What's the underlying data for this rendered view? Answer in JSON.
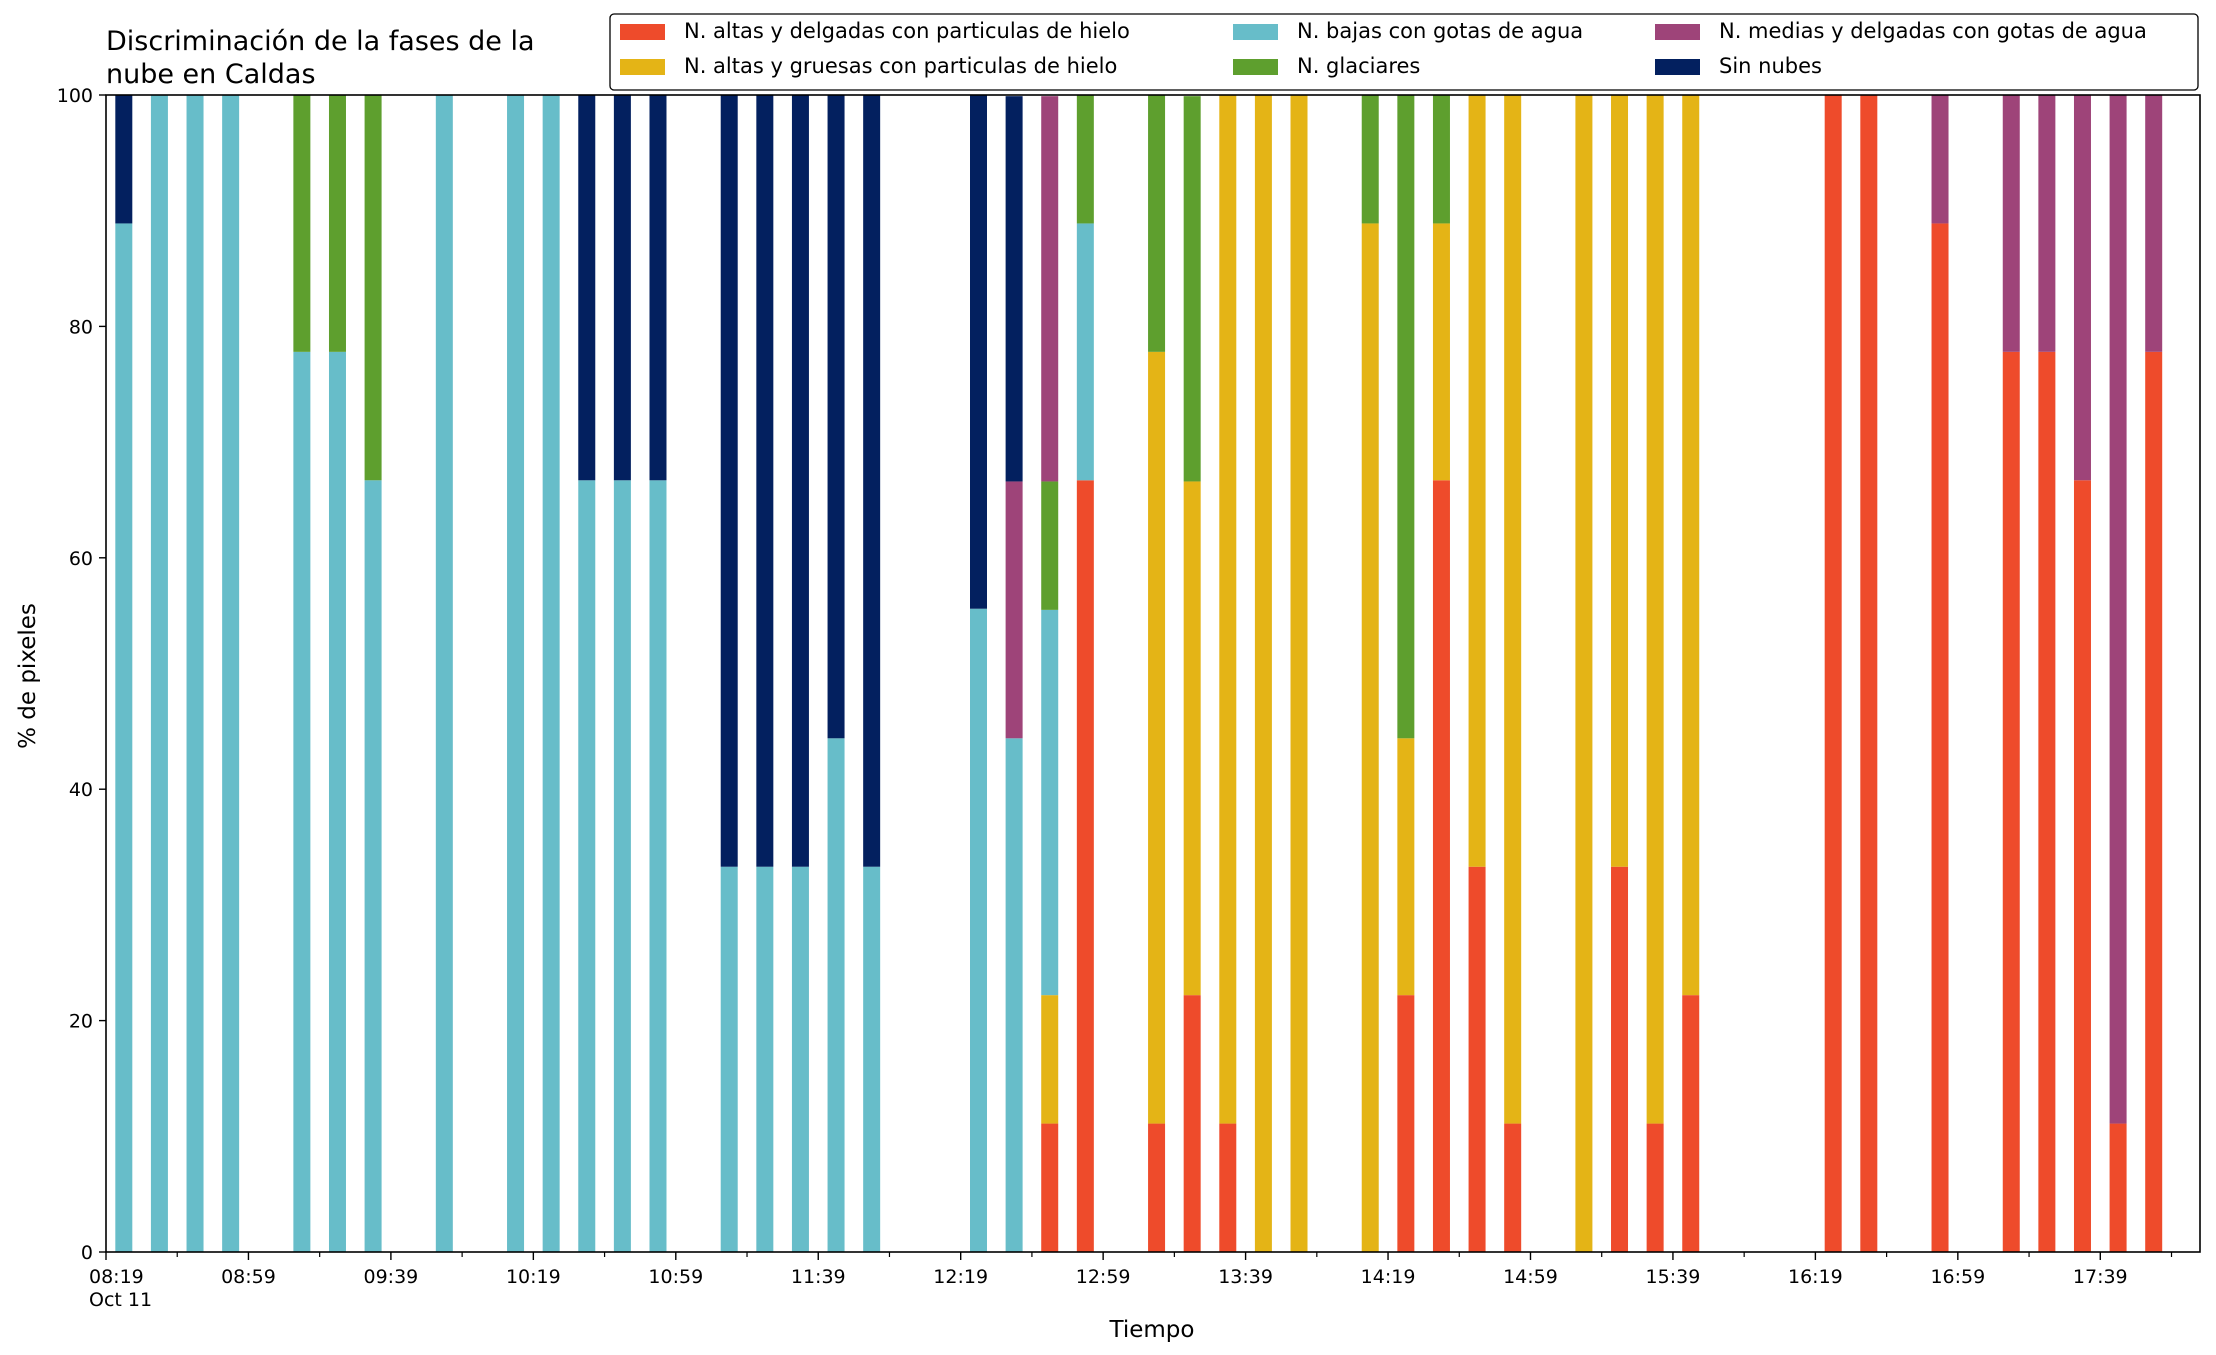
{
  "chart_data": {
    "type": "bar",
    "stacked": true,
    "title": [
      "Discriminación de la fases de la",
      "nube en Caldas"
    ],
    "xlabel": "Tiempo",
    "ylabel": "% de pixeles",
    "ylim": [
      0,
      100
    ],
    "yticks": [
      0,
      20,
      40,
      60,
      80,
      100
    ],
    "x_axis_start_label": "08:19",
    "x_axis_date_label": "Oct 11",
    "x_start_minutes": 499,
    "x_end_minutes": 1087,
    "xtick_labels": [
      "08:19",
      "08:59",
      "09:39",
      "10:19",
      "10:59",
      "11:39",
      "12:19",
      "12:59",
      "13:39",
      "14:19",
      "14:59",
      "15:39",
      "16:19",
      "16:59",
      "17:39"
    ],
    "legend_position": "top-right",
    "legend_columns": 3,
    "grid": false,
    "series": [
      {
        "name": "N. altas y delgadas con particulas de hielo",
        "color": "#ee4b2b"
      },
      {
        "name": "N. altas y gruesas con particulas de hielo",
        "color": "#e4b416"
      },
      {
        "name": "N. bajas con gotas de agua",
        "color": "#67bdc9"
      },
      {
        "name": "N. glaciares",
        "color": "#5e9f2e"
      },
      {
        "name": "N. medias y delgadas con gotas de agua",
        "color": "#9e4479"
      },
      {
        "name": "Sin nubes",
        "color": "#03205f"
      }
    ],
    "stack_order": [
      "N. altas y delgadas con particulas de hielo",
      "N. altas y gruesas con particulas de hielo",
      "N. bajas con gotas de agua",
      "N. glaciares",
      "N. medias y delgadas con gotas de agua",
      "Sin nubes"
    ],
    "bars": [
      {
        "time": "08:24",
        "values": [
          0,
          0,
          88.9,
          0,
          0,
          11.1
        ]
      },
      {
        "time": "08:34",
        "values": [
          0,
          0,
          100,
          0,
          0,
          0
        ]
      },
      {
        "time": "08:44",
        "values": [
          0,
          0,
          100,
          0,
          0,
          0
        ]
      },
      {
        "time": "08:54",
        "values": [
          0,
          0,
          100,
          0,
          0,
          0
        ]
      },
      {
        "time": "09:14",
        "values": [
          0,
          0,
          77.8,
          22.2,
          0,
          0
        ]
      },
      {
        "time": "09:24",
        "values": [
          0,
          0,
          77.8,
          22.2,
          0,
          0
        ]
      },
      {
        "time": "09:34",
        "values": [
          0,
          0,
          66.7,
          33.3,
          0,
          0
        ]
      },
      {
        "time": "09:54",
        "values": [
          0,
          0,
          100,
          0,
          0,
          0
        ]
      },
      {
        "time": "10:14",
        "values": [
          0,
          0,
          100,
          0,
          0,
          0
        ]
      },
      {
        "time": "10:24",
        "values": [
          0,
          0,
          100,
          0,
          0,
          0
        ]
      },
      {
        "time": "10:34",
        "values": [
          0,
          0,
          66.7,
          0,
          0,
          33.3
        ]
      },
      {
        "time": "10:44",
        "values": [
          0,
          0,
          66.7,
          0,
          0,
          33.3
        ]
      },
      {
        "time": "10:54",
        "values": [
          0,
          0,
          66.7,
          0,
          0,
          33.3
        ]
      },
      {
        "time": "11:14",
        "values": [
          0,
          0,
          33.3,
          0,
          0,
          66.7
        ]
      },
      {
        "time": "11:24",
        "values": [
          0,
          0,
          33.3,
          0,
          0,
          66.7
        ]
      },
      {
        "time": "11:34",
        "values": [
          0,
          0,
          33.3,
          0,
          0,
          66.7
        ]
      },
      {
        "time": "11:44",
        "values": [
          0,
          0,
          44.4,
          0,
          0,
          55.6
        ]
      },
      {
        "time": "11:54",
        "values": [
          0,
          0,
          33.3,
          0,
          0,
          66.7
        ]
      },
      {
        "time": "12:24",
        "values": [
          0,
          0,
          55.6,
          0,
          0,
          44.4
        ]
      },
      {
        "time": "12:34",
        "values": [
          0,
          0,
          44.4,
          0,
          22.2,
          33.3
        ]
      },
      {
        "time": "12:44",
        "values": [
          11.1,
          11.1,
          33.3,
          11.1,
          33.3,
          0
        ]
      },
      {
        "time": "12:54",
        "values": [
          66.7,
          0,
          22.2,
          11.1,
          0,
          0
        ]
      },
      {
        "time": "13:14",
        "values": [
          11.1,
          66.7,
          0,
          22.2,
          0,
          0
        ]
      },
      {
        "time": "13:24",
        "values": [
          22.2,
          44.4,
          0,
          33.3,
          0,
          0
        ]
      },
      {
        "time": "13:34",
        "values": [
          11.1,
          88.9,
          0,
          0,
          0,
          0
        ]
      },
      {
        "time": "13:44",
        "values": [
          0,
          100,
          0,
          0,
          0,
          0
        ]
      },
      {
        "time": "13:54",
        "values": [
          0,
          100,
          0,
          0,
          0,
          0
        ]
      },
      {
        "time": "14:14",
        "values": [
          0,
          88.9,
          0,
          11.1,
          0,
          0
        ]
      },
      {
        "time": "14:24",
        "values": [
          22.2,
          22.2,
          0,
          55.6,
          0,
          0
        ]
      },
      {
        "time": "14:34",
        "values": [
          66.7,
          22.2,
          0,
          11.1,
          0,
          0
        ]
      },
      {
        "time": "14:44",
        "values": [
          33.3,
          66.7,
          0,
          0,
          0,
          0
        ]
      },
      {
        "time": "14:54",
        "values": [
          11.1,
          88.9,
          0,
          0,
          0,
          0
        ]
      },
      {
        "time": "15:14",
        "values": [
          0,
          100,
          0,
          0,
          0,
          0
        ]
      },
      {
        "time": "15:24",
        "values": [
          33.3,
          66.7,
          0,
          0,
          0,
          0
        ]
      },
      {
        "time": "15:34",
        "values": [
          11.1,
          88.9,
          0,
          0,
          0,
          0
        ]
      },
      {
        "time": "15:44",
        "values": [
          22.2,
          77.8,
          0,
          0,
          0,
          0
        ]
      },
      {
        "time": "16:24",
        "values": [
          100,
          0,
          0,
          0,
          0,
          0
        ]
      },
      {
        "time": "16:34",
        "values": [
          100,
          0,
          0,
          0,
          0,
          0
        ]
      },
      {
        "time": "16:54",
        "values": [
          88.9,
          0,
          0,
          0,
          11.1,
          0
        ]
      },
      {
        "time": "17:14",
        "values": [
          77.8,
          0,
          0,
          0,
          22.2,
          0
        ]
      },
      {
        "time": "17:24",
        "values": [
          77.8,
          0,
          0,
          0,
          22.2,
          0
        ]
      },
      {
        "time": "17:34",
        "values": [
          66.7,
          0,
          0,
          0,
          33.3,
          0
        ]
      },
      {
        "time": "17:44",
        "values": [
          11.1,
          0,
          0,
          0,
          88.9,
          0
        ]
      },
      {
        "time": "17:54",
        "values": [
          77.8,
          0,
          0,
          0,
          22.2,
          0
        ]
      }
    ]
  }
}
